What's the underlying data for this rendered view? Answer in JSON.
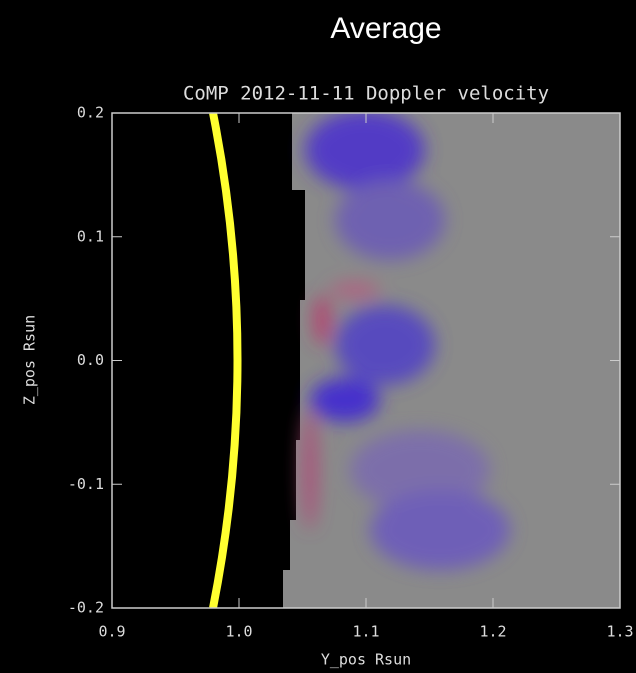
{
  "header": "Average",
  "chart_data": {
    "type": "image",
    "title": "CoMP 2012-11-11 Doppler velocity",
    "xlabel": "Y_pos Rsun",
    "ylabel": "Z_pos Rsun",
    "xlim": [
      0.9,
      1.3
    ],
    "ylim": [
      -0.2,
      0.2
    ],
    "xticks": [
      0.9,
      {
        "value": 1,
        "label": "1.0"
      },
      1.1,
      1.2,
      1.3
    ],
    "yticks": [
      -0.2,
      -0.1,
      {
        "value": 0,
        "label": "0.0"
      },
      0.1,
      0.2
    ]
  }
}
